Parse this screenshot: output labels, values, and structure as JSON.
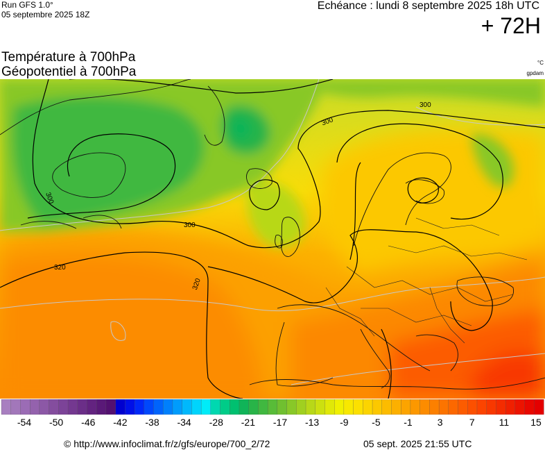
{
  "header": {
    "run_label": "Run GFS 1.0°",
    "run_date": "05 septembre 2025 18Z",
    "validity": "Echéance : lundi 8 septembre 2025 18h UTC",
    "lead_time": "+ 72H"
  },
  "titles": {
    "line1": "Température à 700hPa",
    "line2": "Géopotentiel à 700hPa"
  },
  "units": {
    "temperature": "°C",
    "geopotential": "gpdam"
  },
  "map": {
    "contour_labels": [
      "300",
      "300",
      "300",
      "300",
      "320",
      "320"
    ]
  },
  "legend": {
    "colors": [
      "#a87fc0",
      "#a277ba",
      "#9b6cb5",
      "#9462ad",
      "#8c58a6",
      "#844d9e",
      "#7c4398",
      "#743890",
      "#6b2e88",
      "#632380",
      "#5a1978",
      "#531070",
      "#0000d0",
      "#0010e8",
      "#0028f8",
      "#0048fc",
      "#0064fc",
      "#0080fc",
      "#009cfc",
      "#00b8fc",
      "#00d4fc",
      "#00ecf8",
      "#00d8b0",
      "#00cc88",
      "#00c070",
      "#10b458",
      "#28b448",
      "#40b840",
      "#58bc38",
      "#70c030",
      "#88c828",
      "#a0d020",
      "#b8d818",
      "#cce010",
      "#e0e808",
      "#f0f000",
      "#f8e800",
      "#fce000",
      "#fcd400",
      "#fcc800",
      "#fcbc00",
      "#fcb000",
      "#fca400",
      "#fc9800",
      "#fc8c00",
      "#fc8000",
      "#fc7400",
      "#fc6800",
      "#fc5c00",
      "#fc5000",
      "#fc4400",
      "#f83800",
      "#f42c00",
      "#f02000",
      "#ec1400",
      "#e80800",
      "#e40000"
    ],
    "labels": [
      "-54",
      "-50",
      "-46",
      "-42",
      "-38",
      "-34",
      "-28",
      "-21",
      "-17",
      "-13",
      "-9",
      "-5",
      "-1",
      "3",
      "7",
      "11",
      "15"
    ]
  },
  "footer": {
    "copyright": "© http://www.infoclimat.fr/z/gfs/europe/700_2/72",
    "generated": "05 sept. 2025 21:55 UTC"
  }
}
